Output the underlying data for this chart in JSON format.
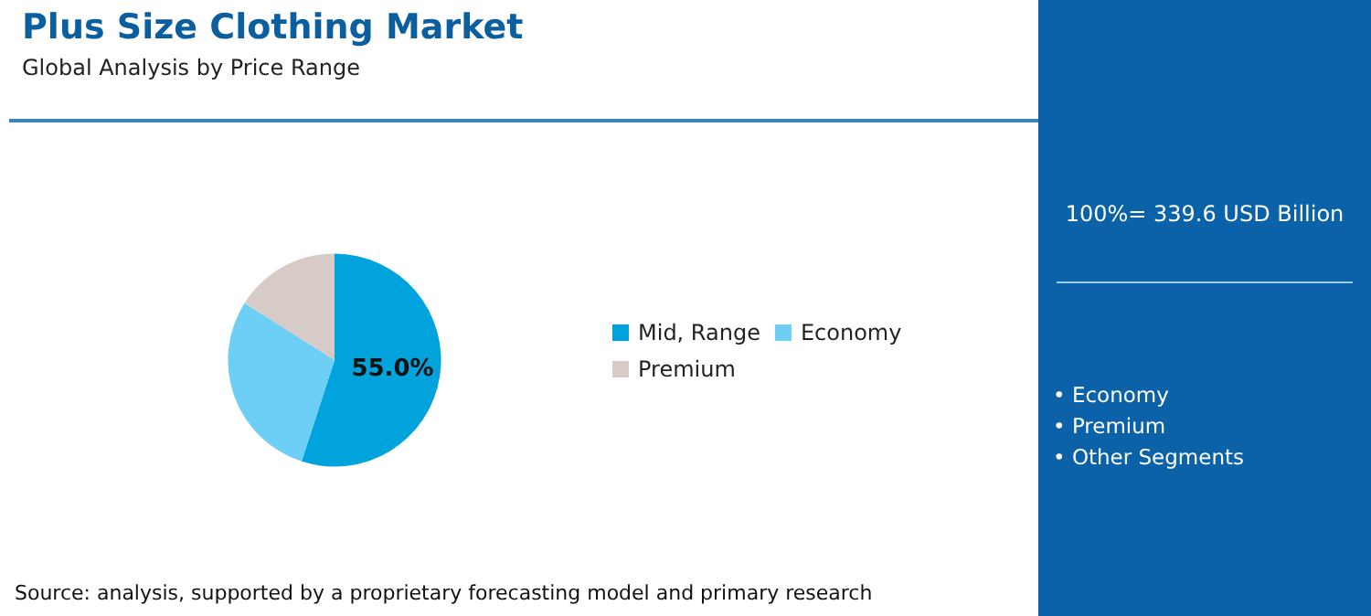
{
  "chart_data": {
    "type": "pie",
    "title": "Plus Size Clothing Market",
    "subtitle": "Global Analysis by Price Range",
    "categories": [
      "Mid, Range",
      "Economy",
      "Premium"
    ],
    "values": [
      55,
      29,
      16
    ],
    "colors": [
      "#00a3db",
      "#6dcff6",
      "#d6cbc6"
    ],
    "value_labels": [
      "55.0%",
      null,
      null
    ],
    "legend": "right",
    "annotations": [
      "100%= 339.6 USD Billion",
      "• Economy",
      "• Premium",
      "• Other Segments",
      "Source: analysis, supported by a proprietary forecasting model and primary research"
    ]
  }
}
